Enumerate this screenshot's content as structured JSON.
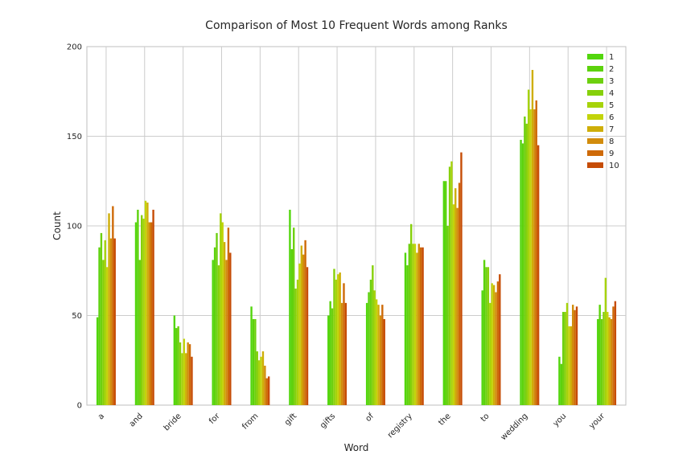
{
  "chart_data": {
    "type": "bar",
    "title": "Comparison of Most 10 Frequent Words among Ranks",
    "xlabel": "Word",
    "ylabel": "Count",
    "ylim": [
      0,
      200
    ],
    "yticks": [
      0,
      50,
      100,
      150,
      200
    ],
    "grid": true,
    "legend_position": "top-right",
    "categories": [
      "a",
      "and",
      "bride",
      "for",
      "from",
      "gift",
      "gifts",
      "of",
      "registry",
      "the",
      "to",
      "wedding",
      "you",
      "your"
    ],
    "series": [
      {
        "name": "1",
        "color": "#52d60d",
        "values": [
          49,
          102,
          50,
          81,
          55,
          109,
          50,
          57,
          85,
          125,
          64,
          148,
          27,
          48
        ]
      },
      {
        "name": "2",
        "color": "#5cd20c",
        "values": [
          88,
          109,
          43,
          88,
          48,
          87,
          58,
          63,
          78,
          125,
          81,
          146,
          23,
          56
        ]
      },
      {
        "name": "3",
        "color": "#6dd00f",
        "values": [
          96,
          81,
          44,
          96,
          48,
          99,
          54,
          70,
          90,
          100,
          77,
          161,
          52,
          48
        ]
      },
      {
        "name": "4",
        "color": "#86d00a",
        "values": [
          81,
          106,
          35,
          78,
          30,
          65,
          76,
          78,
          101,
          133,
          77,
          157,
          52,
          52
        ]
      },
      {
        "name": "5",
        "color": "#a6d30a",
        "values": [
          92,
          104,
          29,
          107,
          25,
          70,
          70,
          64,
          90,
          136,
          57,
          176,
          57,
          71
        ]
      },
      {
        "name": "6",
        "color": "#c2d40a",
        "values": [
          77,
          114,
          37,
          102,
          27,
          79,
          73,
          59,
          90,
          112,
          68,
          165,
          44,
          52
        ]
      },
      {
        "name": "7",
        "color": "#ceae08",
        "values": [
          107,
          113,
          29,
          91,
          30,
          89,
          74,
          56,
          85,
          121,
          67,
          187,
          44,
          49
        ]
      },
      {
        "name": "8",
        "color": "#d28c0c",
        "values": [
          93,
          102,
          35,
          81,
          22,
          84,
          57,
          50,
          90,
          110,
          63,
          165,
          56,
          48
        ]
      },
      {
        "name": "9",
        "color": "#ce6a08",
        "values": [
          111,
          102,
          34,
          99,
          15,
          92,
          68,
          56,
          88,
          124,
          69,
          170,
          53,
          55
        ]
      },
      {
        "name": "10",
        "color": "#c64c06",
        "values": [
          93,
          109,
          27,
          85,
          16,
          77,
          57,
          48,
          88,
          141,
          73,
          145,
          55,
          58
        ]
      }
    ]
  }
}
